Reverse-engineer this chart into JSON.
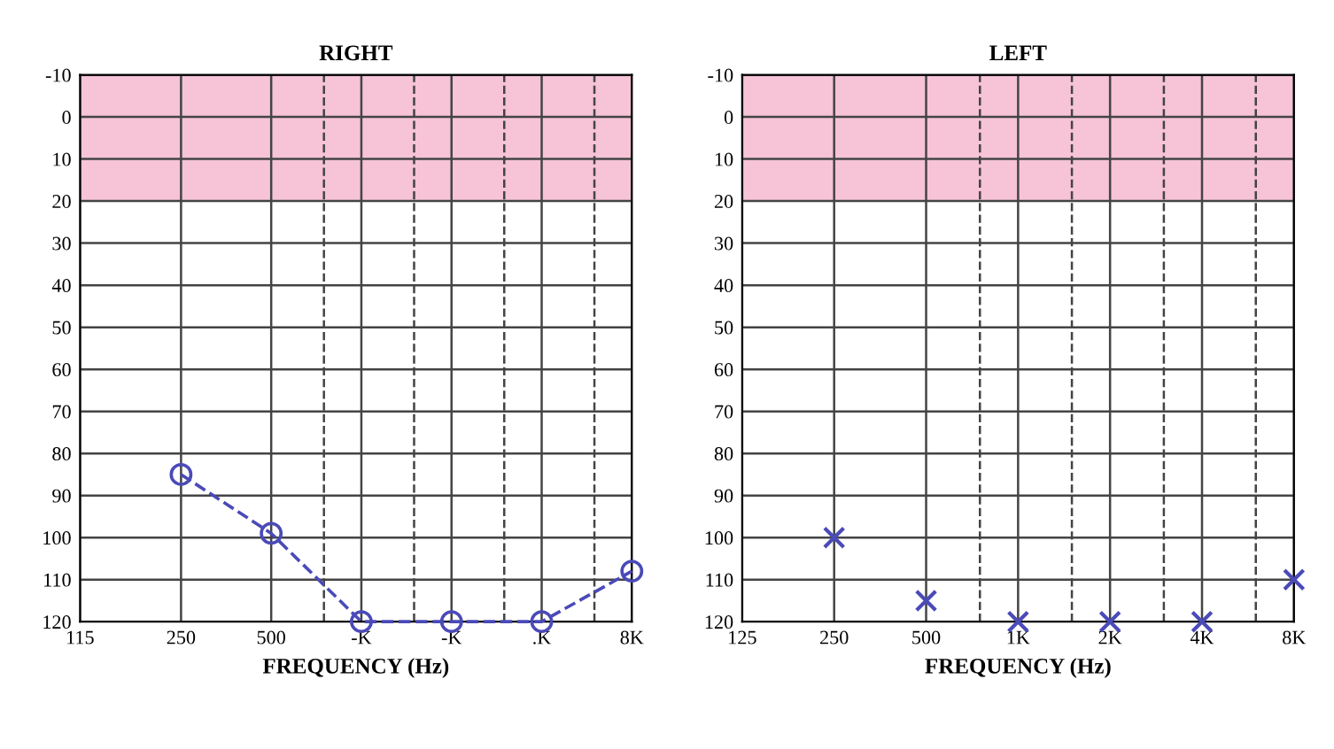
{
  "chart_data": [
    {
      "type": "line",
      "title": "RIGHT",
      "xlabel": "FREQUENCY (Hz)",
      "log": "x",
      "grid": true,
      "marker": "circle",
      "line_style": "dashed",
      "xlim": [
        115,
        8000
      ],
      "xticks": [
        115,
        250,
        500,
        {
          "value": 1000,
          "label": "-K"
        },
        {
          "value": 2000,
          "label": "-K"
        },
        {
          "value": 4000,
          "label": ".K"
        },
        {
          "value": 8000,
          "label": "8K"
        }
      ],
      "ylim": [
        120,
        -10
      ],
      "yticks": [
        -10,
        0,
        10,
        20,
        30,
        40,
        50,
        60,
        70,
        80,
        90,
        100,
        110,
        120
      ],
      "bands": [
        {
          "axis": "y",
          "from": -10,
          "to": 20,
          "color": "#f4b8d0"
        }
      ],
      "ref_lines": [
        {
          "axis": "x",
          "value": 750,
          "line_style": "dashed"
        },
        {
          "axis": "x",
          "value": 1500,
          "line_style": "dashed"
        },
        {
          "axis": "x",
          "value": 3000,
          "line_style": "dashed"
        },
        {
          "axis": "x",
          "value": 6000,
          "line_style": "dashed"
        }
      ],
      "x": [
        250,
        500,
        1000,
        2000,
        4000,
        8000
      ],
      "series": [
        {
          "color": "#4a4ab8",
          "values": [
            85,
            99,
            120,
            120,
            120,
            108
          ]
        }
      ]
    },
    {
      "type": "scatter",
      "title": "LEFT",
      "xlabel": "FREQUENCY (Hz)",
      "log": "x",
      "grid": true,
      "marker": "cross",
      "xlim": [
        125,
        8000
      ],
      "xticks": [
        125,
        250,
        500,
        {
          "value": 1000,
          "label": "1K"
        },
        {
          "value": 2000,
          "label": "2K"
        },
        {
          "value": 4000,
          "label": "4K"
        },
        {
          "value": 8000,
          "label": "8K"
        }
      ],
      "ylim": [
        120,
        -10
      ],
      "yticks": [
        -10,
        0,
        10,
        20,
        30,
        40,
        50,
        60,
        70,
        80,
        90,
        100,
        110,
        120
      ],
      "bands": [
        {
          "axis": "y",
          "from": -10,
          "to": 20,
          "color": "#f4b8d0"
        }
      ],
      "ref_lines": [
        {
          "axis": "x",
          "value": 750,
          "line_style": "dashed"
        },
        {
          "axis": "x",
          "value": 1500,
          "line_style": "dashed"
        },
        {
          "axis": "x",
          "value": 3000,
          "line_style": "dashed"
        },
        {
          "axis": "x",
          "value": 6000,
          "line_style": "dashed"
        }
      ],
      "x": [
        250,
        500,
        1000,
        2000,
        4000,
        8000
      ],
      "series": [
        {
          "color": "#4a4ab8",
          "values": [
            100,
            115,
            120,
            120,
            120,
            110
          ]
        }
      ]
    }
  ]
}
